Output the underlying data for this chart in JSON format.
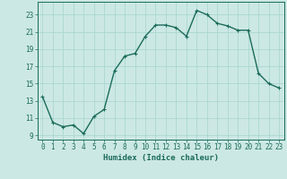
{
  "x": [
    0,
    1,
    2,
    3,
    4,
    5,
    6,
    7,
    8,
    9,
    10,
    11,
    12,
    13,
    14,
    15,
    16,
    17,
    18,
    19,
    20,
    21,
    22,
    23
  ],
  "y": [
    13.5,
    10.5,
    10.0,
    10.2,
    9.2,
    11.2,
    12.0,
    16.5,
    18.2,
    18.5,
    20.5,
    21.8,
    21.8,
    21.5,
    20.5,
    23.5,
    23.0,
    22.0,
    21.7,
    21.2,
    21.2,
    16.2,
    15.0,
    14.5
  ],
  "line_color": "#1a6b5a",
  "marker": "+",
  "marker_size": 3,
  "bg_color": "#cce8e4",
  "grid_color": "#aad8d0",
  "xlabel": "Humidex (Indice chaleur)",
  "ylabel": "",
  "title": "",
  "xlim": [
    -0.5,
    23.5
  ],
  "ylim": [
    8.5,
    24.5
  ],
  "yticks": [
    9,
    11,
    13,
    15,
    17,
    19,
    21,
    23
  ],
  "xticks": [
    0,
    1,
    2,
    3,
    4,
    5,
    6,
    7,
    8,
    9,
    10,
    11,
    12,
    13,
    14,
    15,
    16,
    17,
    18,
    19,
    20,
    21,
    22,
    23
  ],
  "tick_color": "#1a6b5a",
  "label_color": "#1a6b5a",
  "font_size": 5.5,
  "xlabel_font_size": 6.5,
  "line_width": 1.0
}
